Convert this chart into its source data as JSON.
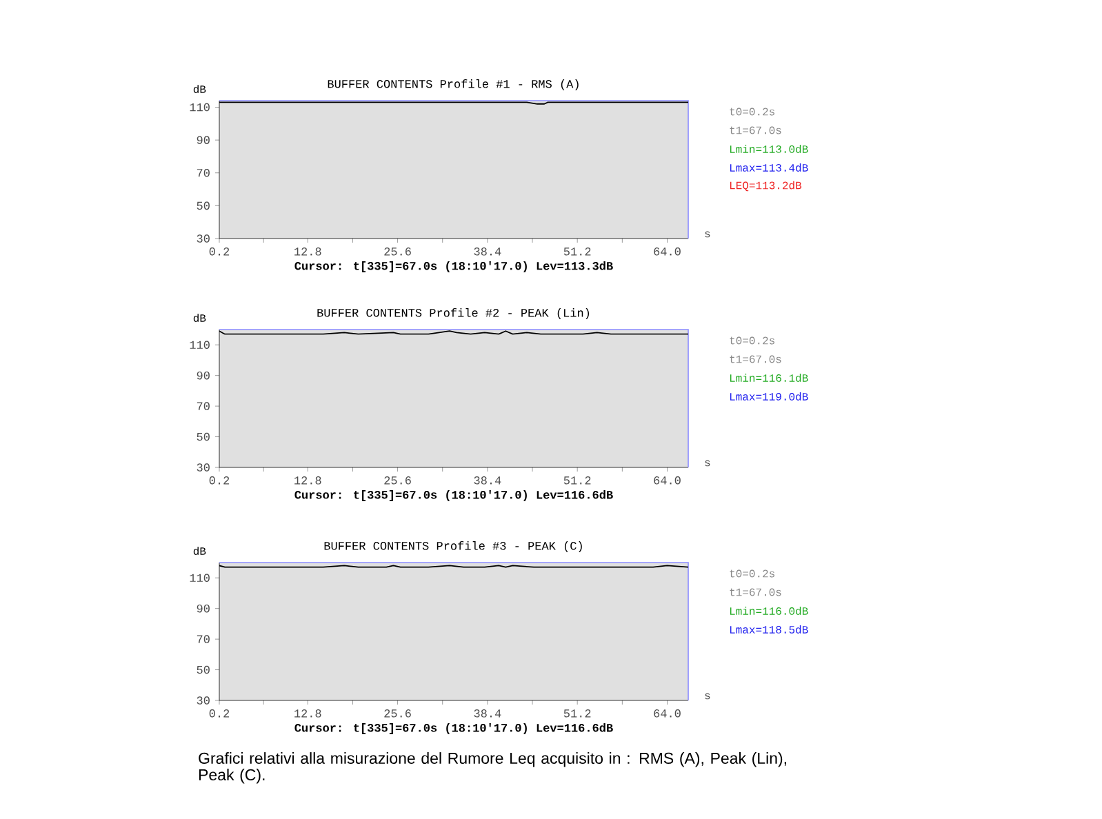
{
  "chart_data": [
    {
      "type": "line",
      "title": "BUFFER CONTENTS  Profile #1  -  RMS (A)",
      "subtitle": "Cursor:   t[335]=67.0s (18:10'17.0)  Lev=113.3dB",
      "xlabel": "s",
      "ylabel": "dB",
      "x": [
        0.2,
        5,
        10,
        15,
        20,
        25,
        30,
        35,
        40,
        44,
        45.5,
        46.5,
        47,
        50,
        55,
        60,
        67
      ],
      "series": [
        {
          "color": "#000000",
          "values": [
            113,
            113,
            113,
            113,
            113,
            113,
            113,
            113,
            113,
            113,
            112,
            112,
            113,
            113,
            113,
            113,
            113
          ]
        }
      ],
      "xlim": [
        0.2,
        67
      ],
      "ylim": [
        30,
        114
      ],
      "xticks": [
        0.2,
        {
          "value": 6.5,
          "label": null
        },
        12.8,
        {
          "value": 19.2,
          "label": null
        },
        25.6,
        {
          "value": 32,
          "label": null
        },
        38.4,
        {
          "value": 44.8,
          "label": null
        },
        51.2,
        {
          "value": 57.6,
          "label": null
        },
        {
          "value": 64,
          "label": "64.0"
        }
      ],
      "yticks": [
        30,
        50,
        70,
        90,
        110
      ],
      "grid": false,
      "marker": "none",
      "line_style": "solid",
      "annotations": [
        "t0=0.2s",
        "t1=67.0s",
        "Lmin=113.0dB",
        "Lmax=113.4dB",
        "LEQ=113.2dB"
      ]
    },
    {
      "type": "line",
      "title": "BUFFER CONTENTS  Profile #2  -  PEAK (Lin)",
      "subtitle": "Cursor:   t[335]=67.0s (18:10'17.0)  Lev=116.6dB",
      "xlabel": "s",
      "ylabel": "dB",
      "x": [
        0.2,
        1,
        2,
        5,
        10,
        15,
        18,
        20,
        25,
        26,
        30,
        33,
        34,
        36,
        38,
        40,
        41,
        42,
        44,
        46,
        48,
        50,
        52,
        54,
        56,
        58,
        60,
        62,
        64,
        67
      ],
      "series": [
        {
          "color": "#000000",
          "values": [
            119,
            117,
            117,
            117,
            117,
            117,
            118,
            117,
            118,
            117,
            117,
            119,
            118,
            117,
            118,
            117,
            119,
            117,
            118,
            117,
            117,
            117,
            117,
            118,
            117,
            117,
            117,
            117,
            117,
            117
          ]
        }
      ],
      "xlim": [
        0.2,
        67
      ],
      "ylim": [
        30,
        120
      ],
      "xticks": [
        0.2,
        {
          "value": 6.5,
          "label": null
        },
        12.8,
        {
          "value": 19.2,
          "label": null
        },
        25.6,
        {
          "value": 32,
          "label": null
        },
        38.4,
        {
          "value": 44.8,
          "label": null
        },
        51.2,
        {
          "value": 57.6,
          "label": null
        },
        {
          "value": 64,
          "label": "64.0"
        }
      ],
      "yticks": [
        30,
        50,
        70,
        90,
        110
      ],
      "grid": false,
      "marker": "none",
      "line_style": "solid",
      "annotations": [
        "t0=0.2s",
        "t1=67.0s",
        "Lmin=116.1dB",
        "Lmax=119.0dB"
      ]
    },
    {
      "type": "line",
      "title": "BUFFER CONTENTS  Profile #3  -  PEAK (C)",
      "subtitle": "Cursor:   t[335]=67.0s (18:10'17.0)  Lev=116.6dB",
      "xlabel": "s",
      "ylabel": "dB",
      "x": [
        0.2,
        1,
        2,
        5,
        10,
        15,
        18,
        20,
        24,
        25,
        26,
        30,
        33,
        35,
        38,
        40,
        41,
        42,
        45,
        48,
        50,
        52,
        55,
        58,
        60,
        62,
        64,
        67
      ],
      "series": [
        {
          "color": "#000000",
          "values": [
            118,
            117,
            117,
            117,
            117,
            117,
            118,
            117,
            117,
            118,
            117,
            117,
            118,
            117,
            117,
            118,
            117,
            118,
            117,
            117,
            117,
            117,
            117,
            117,
            117,
            117,
            118,
            117
          ]
        }
      ],
      "xlim": [
        0.2,
        67
      ],
      "ylim": [
        30,
        120
      ],
      "xticks": [
        0.2,
        {
          "value": 6.5,
          "label": null
        },
        12.8,
        {
          "value": 19.2,
          "label": null
        },
        25.6,
        {
          "value": 32,
          "label": null
        },
        38.4,
        {
          "value": 44.8,
          "label": null
        },
        51.2,
        {
          "value": 57.6,
          "label": null
        },
        {
          "value": 64,
          "label": "64.0"
        }
      ],
      "yticks": [
        30,
        50,
        70,
        90,
        110
      ],
      "grid": false,
      "marker": "none",
      "line_style": "solid",
      "annotations": [
        "t0=0.2s",
        "t1=67.0s",
        "Lmin=116.0dB",
        "Lmax=118.5dB"
      ]
    },
    {
      "type": "other",
      "annotations": [
        "Grafici relativi alla misurazione del Rumore Leq acquisito in : RMS (A), Peak (Lin), Peak (C)."
      ]
    }
  ]
}
